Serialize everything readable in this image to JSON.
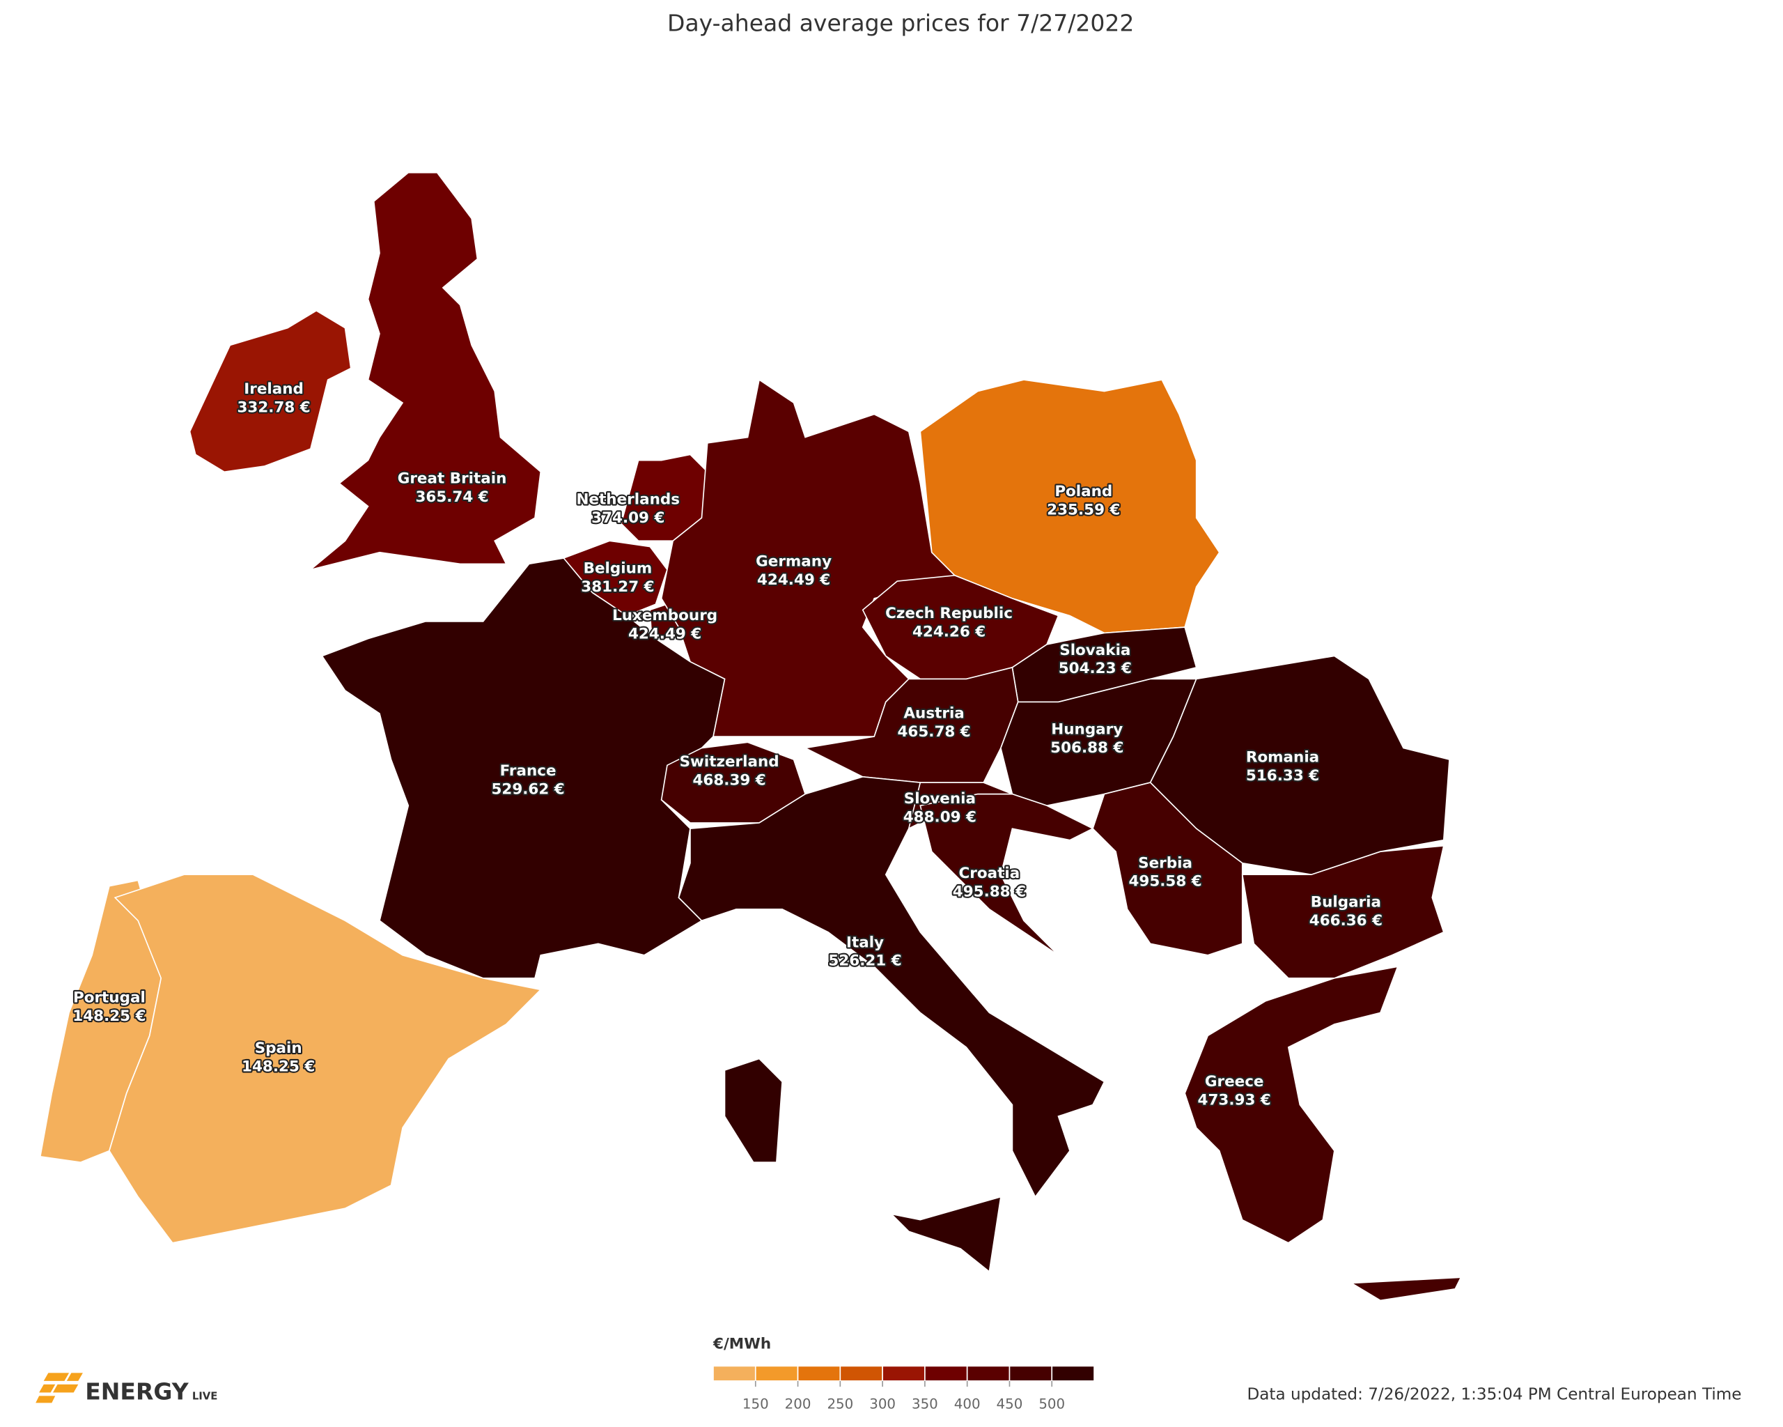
{
  "title": "Day-ahead average prices for 7/27/2022",
  "regions": [
    {
      "name": "Ireland",
      "value": 332.78,
      "value_label": "332.78 €"
    },
    {
      "name": "Great Britain",
      "value": 365.74,
      "value_label": "365.74 €"
    },
    {
      "name": "Netherlands",
      "value": 374.09,
      "value_label": "374.09 €"
    },
    {
      "name": "Belgium",
      "value": 381.27,
      "value_label": "381.27 €"
    },
    {
      "name": "Luxembourg",
      "value": 424.49,
      "value_label": "424.49 €"
    },
    {
      "name": "Germany",
      "value": 424.49,
      "value_label": "424.49 €"
    },
    {
      "name": "Poland",
      "value": 235.59,
      "value_label": "235.59 €"
    },
    {
      "name": "Czech Republic",
      "value": 424.26,
      "value_label": "424.26 €"
    },
    {
      "name": "Slovakia",
      "value": 504.23,
      "value_label": "504.23 €"
    },
    {
      "name": "Austria",
      "value": 465.78,
      "value_label": "465.78 €"
    },
    {
      "name": "Hungary",
      "value": 506.88,
      "value_label": "506.88 €"
    },
    {
      "name": "Romania",
      "value": 516.33,
      "value_label": "516.33 €"
    },
    {
      "name": "France",
      "value": 529.62,
      "value_label": "529.62 €"
    },
    {
      "name": "Switzerland",
      "value": 468.39,
      "value_label": "468.39 €"
    },
    {
      "name": "Slovenia",
      "value": 488.09,
      "value_label": "488.09 €"
    },
    {
      "name": "Croatia",
      "value": 495.88,
      "value_label": "495.88 €"
    },
    {
      "name": "Serbia",
      "value": 495.58,
      "value_label": "495.58 €"
    },
    {
      "name": "Bulgaria",
      "value": 466.36,
      "value_label": "466.36 €"
    },
    {
      "name": "Italy",
      "value": 526.21,
      "value_label": "526.21 €"
    },
    {
      "name": "Portugal",
      "value": 148.25,
      "value_label": "148.25 €"
    },
    {
      "name": "Spain",
      "value": 148.25,
      "value_label": "148.25 €"
    },
    {
      "name": "Greece",
      "value": 473.93,
      "value_label": "473.93 €"
    }
  ],
  "legend": {
    "title": "€/MWh",
    "ticks": [
      150,
      200,
      250,
      300,
      350,
      400,
      450,
      500
    ],
    "colors": [
      "#f4b05c",
      "#f39a2a",
      "#e4740c",
      "#d05503",
      "#9a1503",
      "#6e0000",
      "#5a0000",
      "#460000",
      "#320000"
    ]
  },
  "logo": {
    "brand": "ENERGY",
    "suffix": "LIVE"
  },
  "footer": "Data updated: 7/26/2022, 1:35:04 PM Central European Time"
}
